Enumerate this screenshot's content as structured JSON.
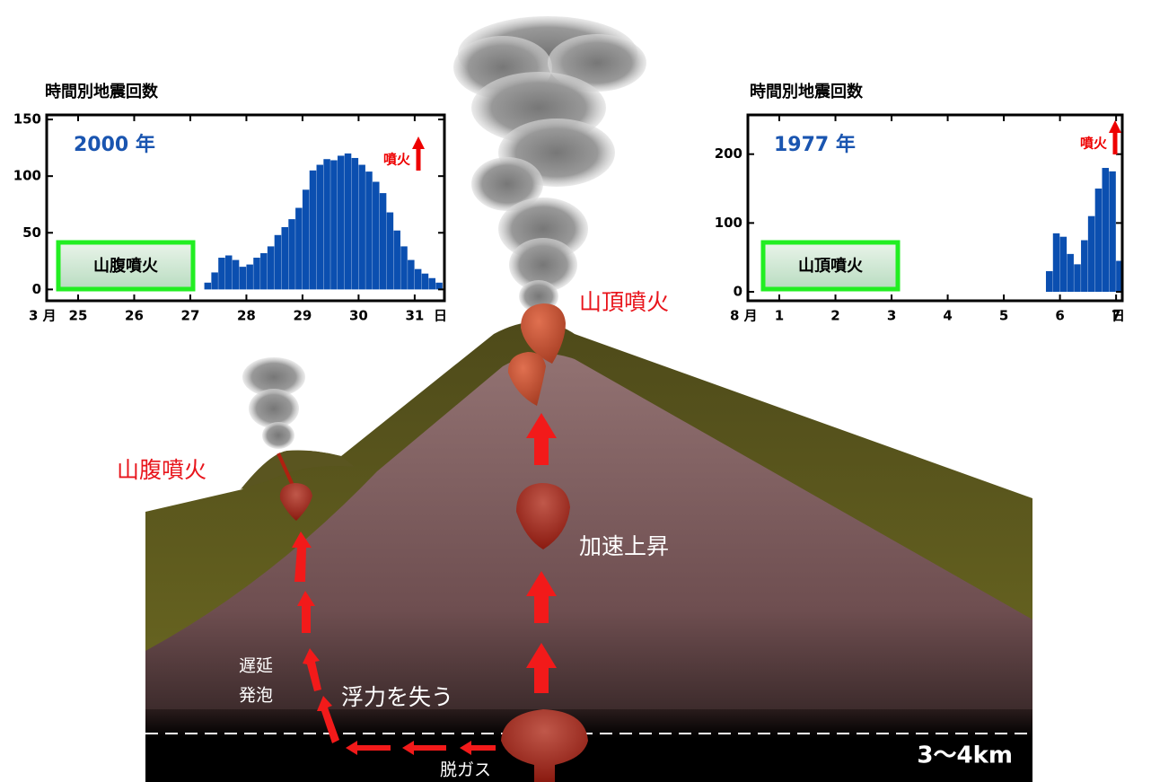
{
  "chart_data": [
    {
      "type": "histogram",
      "title": "時間別地震回数",
      "year_label": "2000 年",
      "annotation": "噴火",
      "box_label": "山腹噴火",
      "x_prefix": "3 月",
      "x_suffix": "日",
      "color": "#0b4fb0",
      "bins": [
        27.25,
        27.375,
        27.5,
        27.625,
        27.75,
        27.875,
        28,
        28.125,
        28.25,
        28.375,
        28.5,
        28.625,
        28.75,
        28.875,
        29,
        29.125,
        29.25,
        29.375,
        29.5,
        29.625,
        29.75,
        29.875,
        30,
        30.125,
        30.25,
        30.375,
        30.5,
        30.625,
        30.75,
        30.875,
        31,
        31.125,
        31.25,
        31.375,
        31.5
      ],
      "values": [
        6,
        15,
        28,
        30,
        26,
        20,
        22,
        28,
        32,
        38,
        48,
        55,
        62,
        72,
        88,
        105,
        110,
        115,
        114,
        118,
        120,
        116,
        110,
        104,
        95,
        85,
        68,
        52,
        38,
        26,
        18,
        14,
        10,
        6
      ],
      "xlim": [
        24.44,
        31.53
      ],
      "xticks": [
        25,
        26,
        27,
        28,
        29,
        30,
        31
      ],
      "ylim": [
        -10,
        154
      ],
      "yticks": [
        0,
        50,
        100,
        150
      ]
    },
    {
      "type": "histogram",
      "title": "時間別地震回数",
      "year_label": "1977 年",
      "annotation": "噴火",
      "box_label": "山頂噴火",
      "x_prefix": "8 月",
      "x_suffix": "日",
      "color": "#0b4fb0",
      "bins": [
        5.75,
        5.875,
        6,
        6.125,
        6.25,
        6.375,
        6.5,
        6.625,
        6.75,
        6.875,
        7,
        7.125
      ],
      "values": [
        30,
        85,
        80,
        55,
        40,
        75,
        110,
        150,
        180,
        175,
        45
      ],
      "xlim": [
        0.44,
        7.11
      ],
      "xticks": [
        1,
        2,
        3,
        4,
        5,
        6,
        7
      ],
      "ylim": [
        -13,
        257
      ],
      "yticks": [
        0,
        100,
        200
      ]
    }
  ],
  "diagram": {
    "summit_eruption": "山頂噴火",
    "flank_eruption": "山腹噴火",
    "acceleration": "加速上昇",
    "delay_line1": "遅延",
    "delay_line2": "発泡",
    "buoyancy_loss": "浮力を失う",
    "degassing": "脱ガス",
    "depth": "3〜4km"
  }
}
